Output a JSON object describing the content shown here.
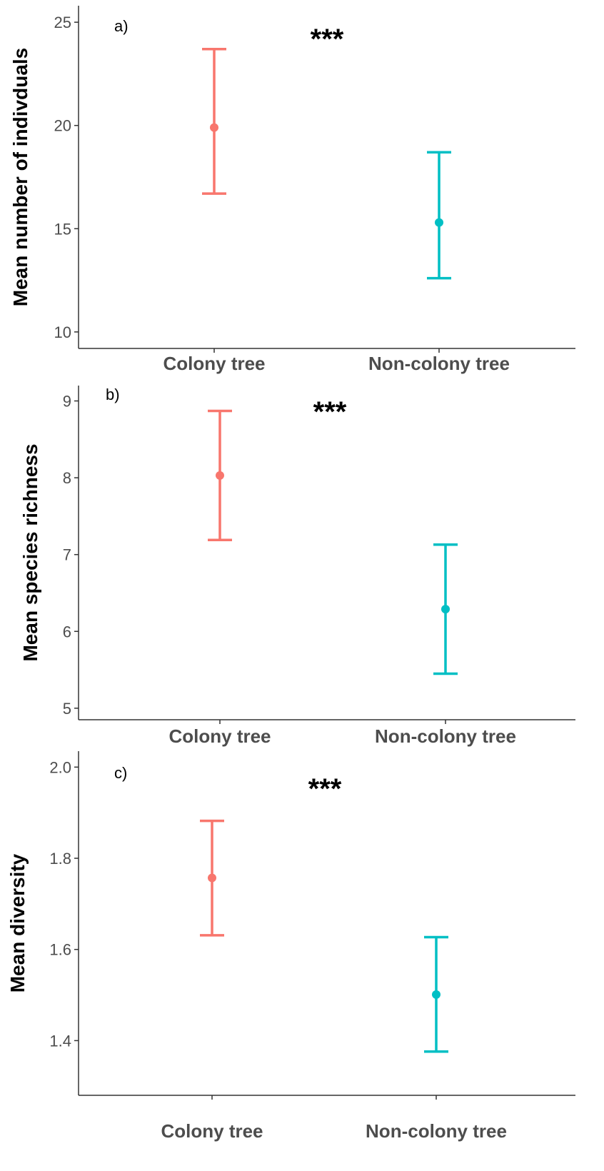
{
  "chart_data": [
    {
      "type": "errorbar",
      "panel_label": "a)",
      "significance": "***",
      "ylabel": "Mean number of indivduals",
      "xlabel": "",
      "categories": [
        "Colony tree",
        "Non-colony tree"
      ],
      "ylim": [
        9.2,
        25.8
      ],
      "yticks": [
        10,
        15,
        20,
        25
      ],
      "grid": false,
      "legend": "none",
      "series": [
        {
          "mean": 19.9,
          "lower": 16.7,
          "upper": 23.7
        },
        {
          "mean": 15.3,
          "lower": 12.6,
          "upper": 18.7
        }
      ]
    },
    {
      "type": "errorbar",
      "panel_label": "b)",
      "significance": "***",
      "ylabel": "Mean species richness",
      "xlabel": "",
      "categories": [
        "Colony tree",
        "Non-colony tree"
      ],
      "ylim": [
        4.85,
        9.2
      ],
      "yticks": [
        5,
        6,
        7,
        8,
        9
      ],
      "grid": false,
      "legend": "none",
      "series": [
        {
          "mean": 8.03,
          "lower": 7.19,
          "upper": 8.87
        },
        {
          "mean": 6.29,
          "lower": 5.45,
          "upper": 7.13
        }
      ]
    },
    {
      "type": "errorbar",
      "panel_label": "c)",
      "significance": "***",
      "ylabel": "Mean diversity",
      "xlabel": "",
      "categories": [
        "Colony tree",
        "Non-colony tree"
      ],
      "ylim": [
        1.28,
        2.035
      ],
      "yticks": [
        1.4,
        1.6,
        1.8,
        2.0
      ],
      "ytick_labels": [
        "1.4",
        "1.6",
        "1.8",
        "2.0"
      ],
      "grid": false,
      "legend": "none",
      "series": [
        {
          "mean": 1.757,
          "lower": 1.631,
          "upper": 1.882
        },
        {
          "mean": 1.501,
          "lower": 1.376,
          "upper": 1.627
        }
      ]
    }
  ],
  "colors": {
    "colony": "#F8766D",
    "non_colony": "#00BFC4",
    "axis": "#333333",
    "text": "#000000"
  }
}
